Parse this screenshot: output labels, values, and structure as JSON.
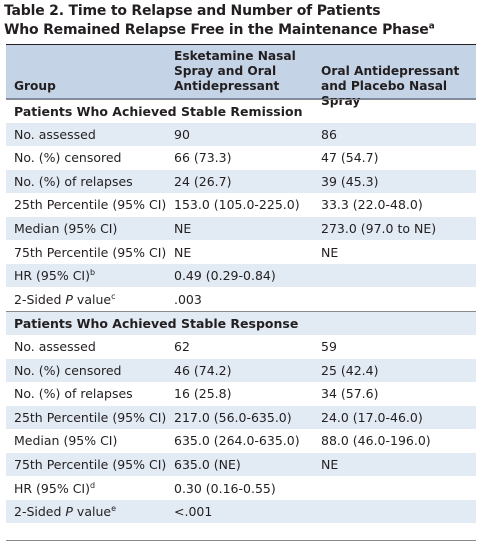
{
  "title": {
    "line1": "Table 2. Time to Relapse and Number of Patients",
    "line2_text": "Who Remained Relapse Free in the Maintenance Phase",
    "line2_sup": "a"
  },
  "header": {
    "group": "Group",
    "col2_line1": "Esketamine Nasal",
    "col2_line2": "Spray and Oral",
    "col2_line3": "Antidepressant",
    "col3_line1": "Oral Antidepressant",
    "col3_line2": "and Placebo Nasal Spray"
  },
  "sections": [
    {
      "title": "Patients Who Achieved Stable Remission",
      "rows": [
        {
          "label": "No. assessed",
          "sup": "",
          "italic_p": false,
          "col2": "90",
          "col3": "86"
        },
        {
          "label": "No. (%) censored",
          "sup": "",
          "italic_p": false,
          "col2": "66 (73.3)",
          "col3": "47 (54.7)"
        },
        {
          "label": "No. (%) of relapses",
          "sup": "",
          "italic_p": false,
          "col2": "24 (26.7)",
          "col3": "39 (45.3)"
        },
        {
          "label": "25th Percentile (95% CI)",
          "sup": "",
          "italic_p": false,
          "col2": "153.0 (105.0-225.0)",
          "col3": "33.3 (22.0-48.0)"
        },
        {
          "label": "Median (95% CI)",
          "sup": "",
          "italic_p": false,
          "col2": "NE",
          "col3": "273.0 (97.0 to NE)"
        },
        {
          "label": "75th Percentile (95% CI)",
          "sup": "",
          "italic_p": false,
          "col2": "NE",
          "col3": "NE"
        },
        {
          "label": "HR (95% CI)",
          "sup": "b",
          "italic_p": false,
          "col2": "0.49 (0.29-0.84)",
          "col3": ""
        },
        {
          "label_pre": "2-Sided ",
          "label_p": "P",
          "label_post": " value",
          "sup": "c",
          "italic_p": true,
          "col2": ".003",
          "col3": ""
        }
      ]
    },
    {
      "title": "Patients Who Achieved Stable Response",
      "rows": [
        {
          "label": "No. assessed",
          "sup": "",
          "italic_p": false,
          "col2": "62",
          "col3": "59"
        },
        {
          "label": "No. (%) censored",
          "sup": "",
          "italic_p": false,
          "col2": "46 (74.2)",
          "col3": "25 (42.4)"
        },
        {
          "label": "No. (%) of relapses",
          "sup": "",
          "italic_p": false,
          "col2": "16 (25.8)",
          "col3": "34 (57.6)"
        },
        {
          "label": "25th Percentile (95% CI)",
          "sup": "",
          "italic_p": false,
          "col2": "217.0 (56.0-635.0)",
          "col3": "24.0 (17.0-46.0)"
        },
        {
          "label": "Median (95% CI)",
          "sup": "",
          "italic_p": false,
          "col2": "635.0 (264.0-635.0)",
          "col3": "88.0 (46.0-196.0)"
        },
        {
          "label": "75th Percentile (95% CI)",
          "sup": "",
          "italic_p": false,
          "col2": "635.0 (NE)",
          "col3": "NE"
        },
        {
          "label": "HR (95% CI)",
          "sup": "d",
          "italic_p": false,
          "col2": "0.30 (0.16-0.55)",
          "col3": ""
        },
        {
          "label_pre": "2-Sided ",
          "label_p": "P",
          "label_post": " value",
          "sup": "e",
          "italic_p": true,
          "col2": "<.001",
          "col3": ""
        }
      ]
    }
  ],
  "colors": {
    "header_bg": "#c4d3e6",
    "shaded_row": "#e2eaf4",
    "text": "#231f20"
  }
}
